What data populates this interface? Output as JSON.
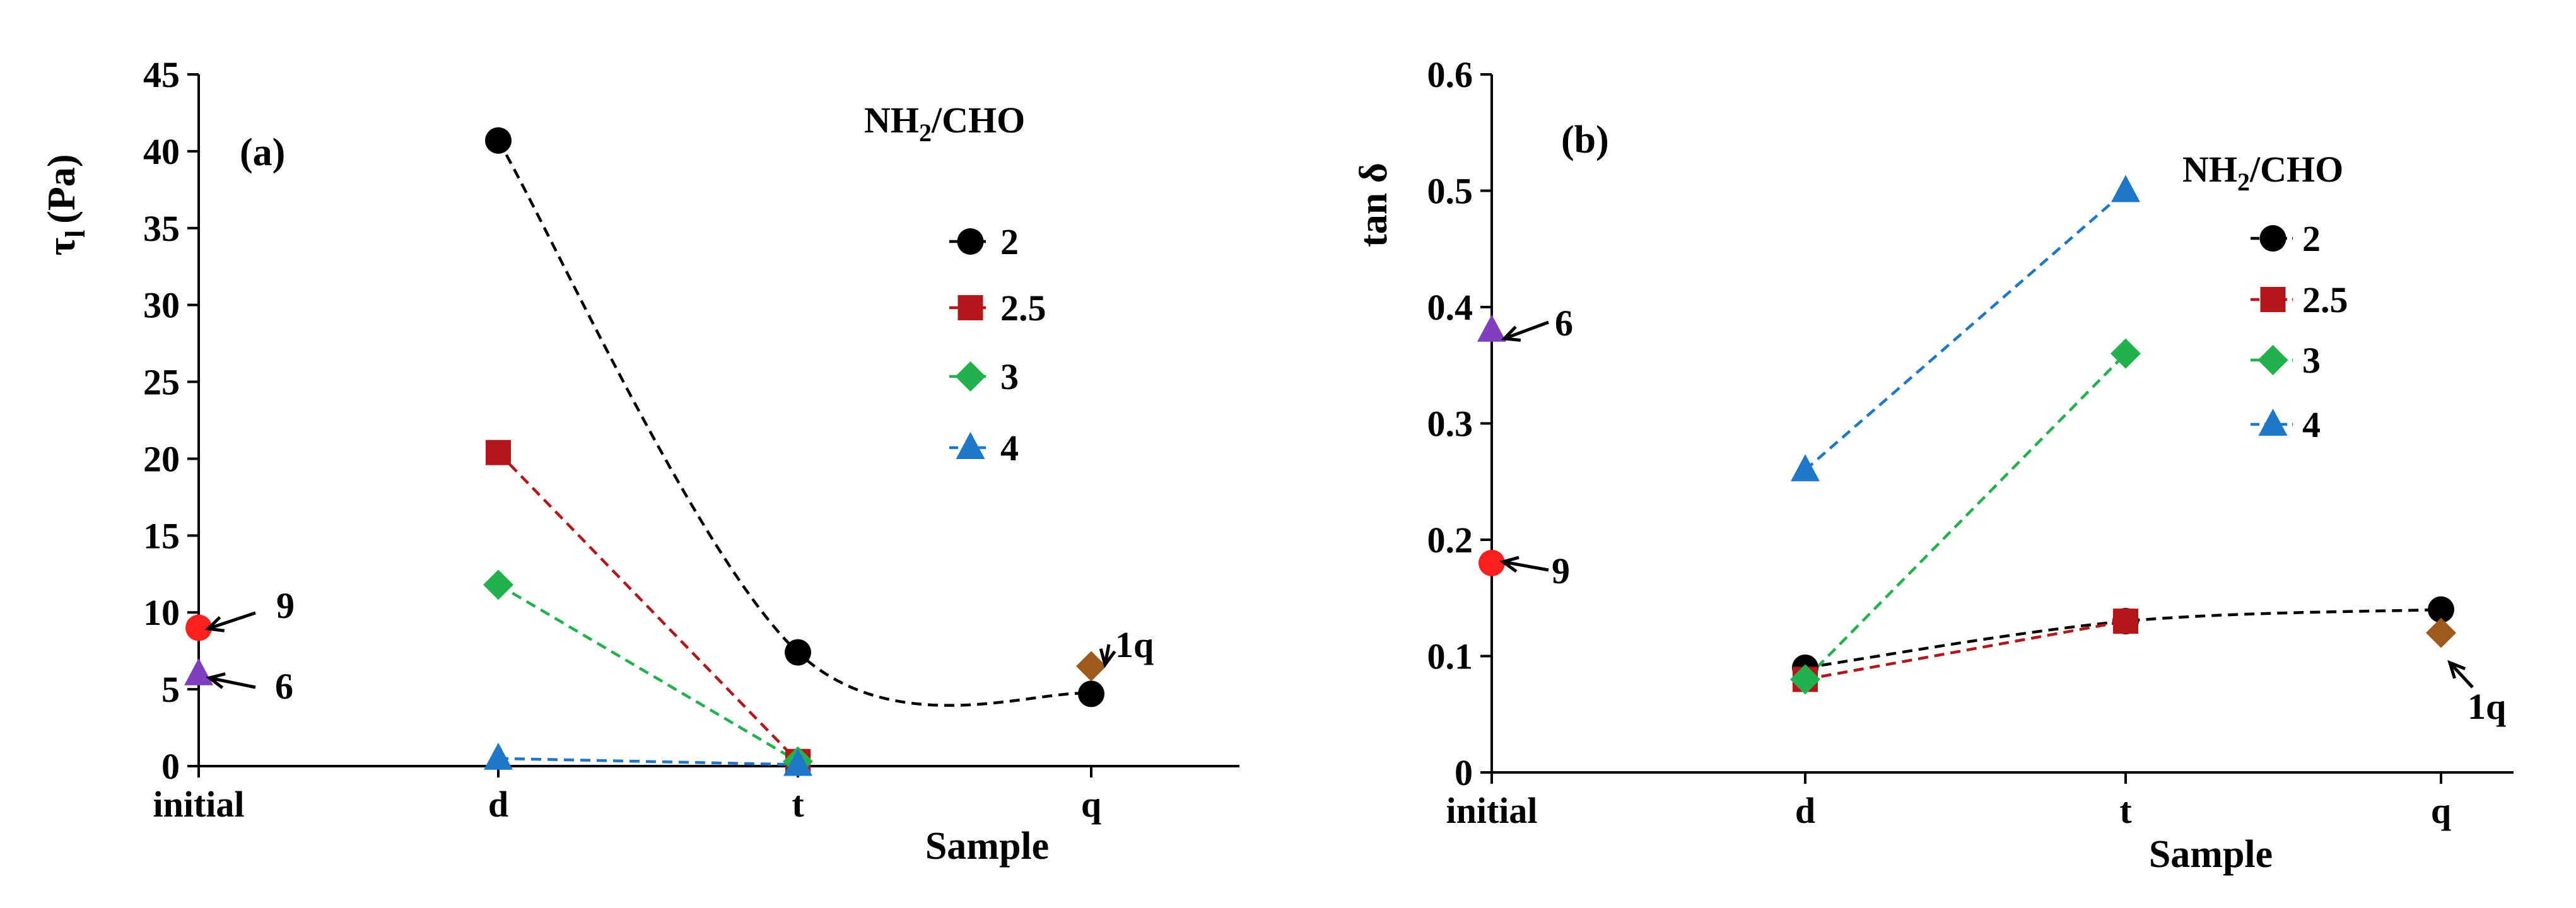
{
  "chart_data": [
    {
      "type": "line",
      "panel": "(a)",
      "categories": [
        "initial",
        "d",
        "t",
        "q"
      ],
      "xlabel": "Sample",
      "ylabel": "τ",
      "ylabel_sub": "l",
      "ylabel_unit": "(Pa)",
      "ylim": [
        0,
        45
      ],
      "yticks": [
        0,
        5,
        10,
        15,
        20,
        25,
        30,
        35,
        40,
        45
      ],
      "legend_title": "NH2/CHO",
      "legend_title_parts": {
        "pre": "NH",
        "sub": "2",
        "post": "/CHO"
      },
      "series": [
        {
          "name": "2",
          "color": "#000000",
          "marker": "circle",
          "curved": true,
          "points": [
            [
              "d",
              40.7
            ],
            [
              "t",
              7.4
            ],
            [
              "q",
              4.7
            ]
          ]
        },
        {
          "name": "2.5",
          "color": "#b3171a",
          "marker": "square",
          "curved": false,
          "points": [
            [
              "d",
              20.4
            ],
            [
              "t",
              0.3
            ]
          ]
        },
        {
          "name": "3",
          "color": "#22b14c",
          "marker": "diamond",
          "curved": false,
          "points": [
            [
              "d",
              11.8
            ],
            [
              "t",
              0.3
            ]
          ]
        },
        {
          "name": "4",
          "color": "#1f77c9",
          "marker": "triangle",
          "curved": false,
          "points": [
            [
              "d",
              0.5
            ],
            [
              "t",
              0.1
            ]
          ]
        }
      ],
      "extra_points": [
        {
          "label": "9",
          "x": "initial",
          "y": 9.0,
          "color": "#ff2020",
          "marker": "circle"
        },
        {
          "label": "6",
          "x": "initial",
          "y": 6.0,
          "color": "#7f3fbf",
          "marker": "triangle"
        },
        {
          "label": "1q",
          "x": "q",
          "y": 6.5,
          "color": "#9c5a1c",
          "marker": "diamond"
        }
      ]
    },
    {
      "type": "line",
      "panel": "(b)",
      "categories": [
        "initial",
        "d",
        "t",
        "q"
      ],
      "xlabel": "Sample",
      "ylabel": "tan δ",
      "ylim": [
        0,
        0.6
      ],
      "yticks": [
        0,
        0.1,
        0.2,
        0.3,
        0.4,
        0.5,
        0.6
      ],
      "legend_title": "NH2/CHO",
      "legend_title_parts": {
        "pre": "NH",
        "sub": "2",
        "post": "/CHO"
      },
      "series": [
        {
          "name": "2",
          "color": "#000000",
          "marker": "circle",
          "curved": true,
          "points": [
            [
              "d",
              0.09
            ],
            [
              "t",
              0.13
            ],
            [
              "q",
              0.14
            ]
          ]
        },
        {
          "name": "2.5",
          "color": "#b3171a",
          "marker": "square",
          "curved": false,
          "points": [
            [
              "d",
              0.08
            ],
            [
              "t",
              0.13
            ]
          ]
        },
        {
          "name": "3",
          "color": "#22b14c",
          "marker": "diamond",
          "curved": false,
          "points": [
            [
              "d",
              0.08
            ],
            [
              "t",
              0.36
            ]
          ]
        },
        {
          "name": "4",
          "color": "#1f77c9",
          "marker": "triangle",
          "curved": false,
          "points": [
            [
              "d",
              0.26
            ],
            [
              "t",
              0.5
            ]
          ]
        }
      ],
      "extra_points": [
        {
          "label": "6",
          "x": "initial",
          "y": 0.38,
          "color": "#7f3fbf",
          "marker": "triangle"
        },
        {
          "label": "9",
          "x": "initial",
          "y": 0.18,
          "color": "#ff2020",
          "marker": "circle"
        },
        {
          "label": "1q",
          "x": "q",
          "y": 0.12,
          "color": "#9c5a1c",
          "marker": "diamond"
        }
      ]
    }
  ]
}
